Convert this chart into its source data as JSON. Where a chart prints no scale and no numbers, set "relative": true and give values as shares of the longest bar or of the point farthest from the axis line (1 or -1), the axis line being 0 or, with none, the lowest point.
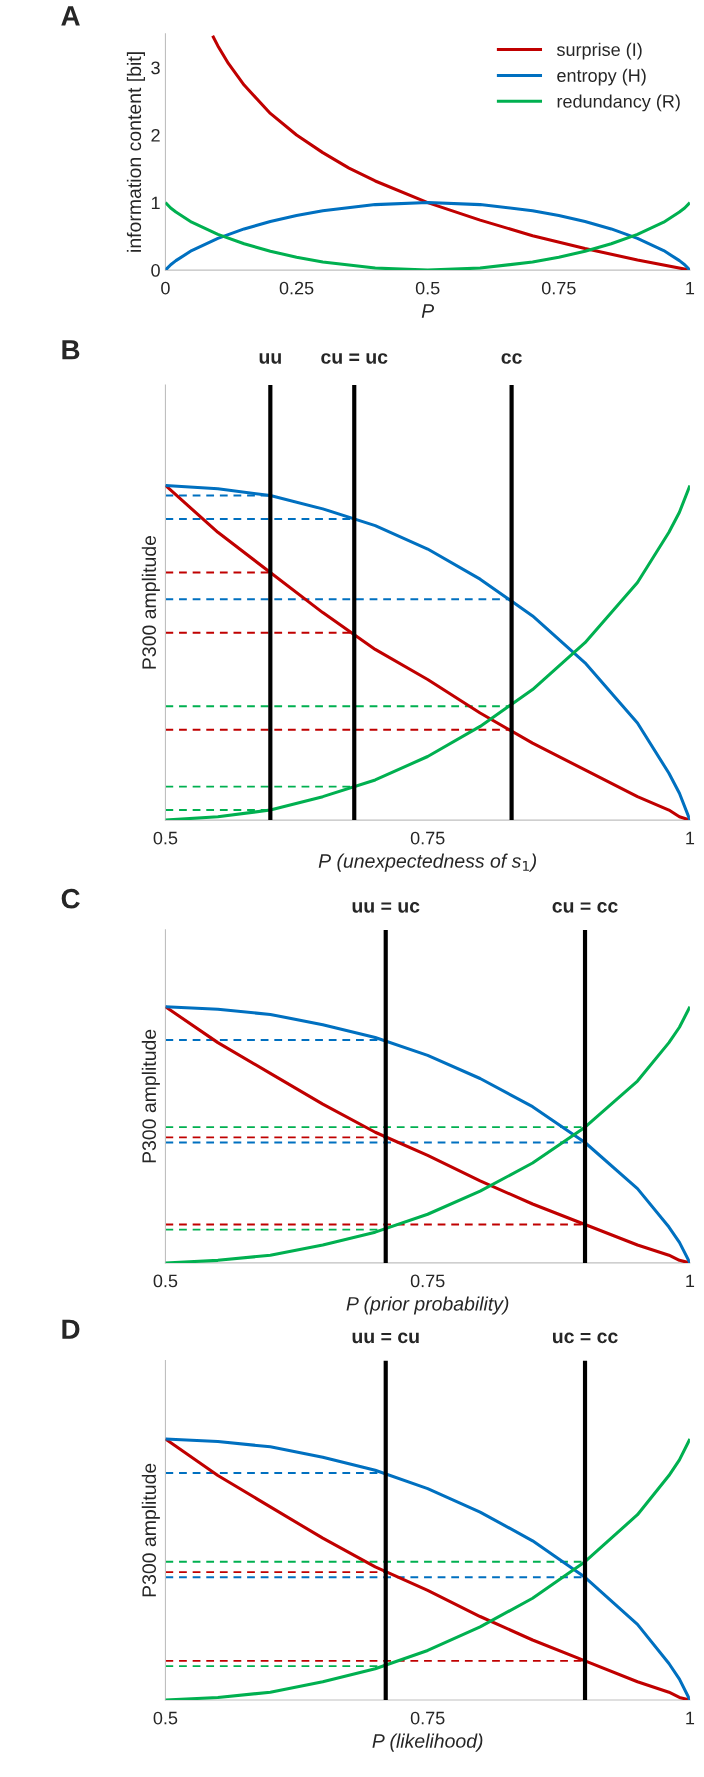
{
  "chart_data": [
    {
      "type": "line",
      "title": "A",
      "xlabel": "P",
      "ylabel": "information content [bit]",
      "xlim": [
        0,
        1
      ],
      "ylim": [
        0,
        3.5
      ],
      "xticks": [
        0,
        0.25,
        0.5,
        0.75,
        1
      ],
      "yticks": [
        0,
        1,
        2,
        3
      ],
      "legend": "top right",
      "series": [
        {
          "name": "surprise (I)",
          "color": "#c00000",
          "x": [
            0.09,
            0.1,
            0.12,
            0.15,
            0.2,
            0.25,
            0.3,
            0.35,
            0.4,
            0.5,
            0.6,
            0.7,
            0.8,
            0.9,
            1
          ],
          "values": [
            3.47,
            3.32,
            3.06,
            2.74,
            2.32,
            2,
            1.74,
            1.51,
            1.32,
            1,
            0.74,
            0.51,
            0.32,
            0.15,
            0
          ]
        },
        {
          "name": "entropy (H)",
          "color": "#0070c0",
          "x": [
            0,
            0.01,
            0.02,
            0.05,
            0.1,
            0.15,
            0.2,
            0.25,
            0.3,
            0.4,
            0.5,
            0.6,
            0.7,
            0.75,
            0.8,
            0.85,
            0.9,
            0.95,
            0.98,
            0.99,
            1
          ],
          "values": [
            0,
            0.08,
            0.14,
            0.29,
            0.47,
            0.61,
            0.72,
            0.81,
            0.88,
            0.97,
            1,
            0.97,
            0.88,
            0.81,
            0.72,
            0.61,
            0.47,
            0.29,
            0.14,
            0.08,
            0
          ]
        },
        {
          "name": "redundancy (R)",
          "color": "#00b050",
          "x": [
            0,
            0.01,
            0.02,
            0.05,
            0.1,
            0.15,
            0.2,
            0.25,
            0.3,
            0.4,
            0.5,
            0.6,
            0.7,
            0.75,
            0.8,
            0.85,
            0.9,
            0.95,
            0.98,
            0.99,
            1
          ],
          "values": [
            1,
            0.92,
            0.86,
            0.71,
            0.53,
            0.39,
            0.28,
            0.19,
            0.12,
            0.03,
            0,
            0.03,
            0.12,
            0.19,
            0.28,
            0.39,
            0.53,
            0.71,
            0.86,
            0.92,
            1
          ]
        }
      ]
    },
    {
      "type": "line",
      "title": "B",
      "xlabel": "P (unexpectedness of s$_{1}$)",
      "ylabel": "P300 amplitude",
      "relative": true,
      "tick_labels": "x",
      "xlim": [
        0.5,
        1
      ],
      "xticks": [
        0.5,
        0.75,
        1
      ],
      "ref_lines": [
        {
          "axis": "x",
          "value": 0.6,
          "label": "uu",
          "color": "#000000"
        },
        {
          "axis": "x",
          "value": 0.68,
          "label": "cu = uc",
          "color": "#000000"
        },
        {
          "axis": "x",
          "value": 0.83,
          "label": "cc",
          "color": "#000000"
        }
      ],
      "series": [
        {
          "color": "#c00000",
          "x": [
            0.5,
            0.55,
            0.6,
            0.65,
            0.7,
            0.75,
            0.8,
            0.85,
            0.9,
            0.95,
            0.98,
            0.99,
            1
          ],
          "values": [
            1,
            0.86,
            0.74,
            0.62,
            0.51,
            0.42,
            0.32,
            0.23,
            0.15,
            0.07,
            0.03,
            0.01,
            0
          ]
        },
        {
          "color": "#0070c0",
          "x": [
            0.5,
            0.55,
            0.6,
            0.65,
            0.7,
            0.75,
            0.8,
            0.85,
            0.9,
            0.95,
            0.98,
            0.99,
            1
          ],
          "values": [
            1,
            0.99,
            0.97,
            0.93,
            0.88,
            0.81,
            0.72,
            0.61,
            0.47,
            0.29,
            0.14,
            0.08,
            0
          ]
        },
        {
          "color": "#00b050",
          "x": [
            0.5,
            0.55,
            0.6,
            0.65,
            0.7,
            0.75,
            0.8,
            0.85,
            0.9,
            0.95,
            0.98,
            0.99,
            1
          ],
          "values": [
            0,
            0.01,
            0.03,
            0.07,
            0.12,
            0.19,
            0.28,
            0.39,
            0.53,
            0.71,
            0.86,
            0.92,
            1
          ]
        },
        {
          "color": "#0070c0",
          "line_style": "dashed",
          "x": [
            0.5,
            0.6
          ],
          "values": [
            0.97,
            0.97
          ]
        },
        {
          "color": "#c00000",
          "line_style": "dashed",
          "x": [
            0.5,
            0.6
          ],
          "values": [
            0.74,
            0.74
          ]
        },
        {
          "color": "#00b050",
          "line_style": "dashed",
          "x": [
            0.5,
            0.6
          ],
          "values": [
            0.03,
            0.03
          ]
        },
        {
          "color": "#0070c0",
          "line_style": "dashed",
          "x": [
            0.5,
            0.68
          ],
          "values": [
            0.9,
            0.9
          ]
        },
        {
          "color": "#c00000",
          "line_style": "dashed",
          "x": [
            0.5,
            0.68
          ],
          "values": [
            0.56,
            0.56
          ]
        },
        {
          "color": "#00b050",
          "line_style": "dashed",
          "x": [
            0.5,
            0.68
          ],
          "values": [
            0.1,
            0.1
          ]
        },
        {
          "color": "#0070c0",
          "line_style": "dashed",
          "x": [
            0.5,
            0.83
          ],
          "values": [
            0.66,
            0.66
          ]
        },
        {
          "color": "#c00000",
          "line_style": "dashed",
          "x": [
            0.5,
            0.83
          ],
          "values": [
            0.27,
            0.27
          ]
        },
        {
          "color": "#00b050",
          "line_style": "dashed",
          "x": [
            0.5,
            0.83
          ],
          "values": [
            0.34,
            0.34
          ]
        }
      ]
    },
    {
      "type": "line",
      "title": "C",
      "xlabel": "P (prior probability)",
      "ylabel": "P300 amplitude",
      "relative": true,
      "tick_labels": "x",
      "xlim": [
        0.5,
        1
      ],
      "xticks": [
        0.5,
        0.75,
        1
      ],
      "ref_lines": [
        {
          "axis": "x",
          "value": 0.71,
          "label": "uu = uc",
          "color": "#000000"
        },
        {
          "axis": "x",
          "value": 0.9,
          "label": "cu = cc",
          "color": "#000000"
        }
      ],
      "series": [
        {
          "color": "#c00000",
          "x": [
            0.5,
            0.55,
            0.6,
            0.65,
            0.7,
            0.75,
            0.8,
            0.85,
            0.9,
            0.95,
            0.98,
            0.99,
            1
          ],
          "values": [
            1,
            0.86,
            0.74,
            0.62,
            0.51,
            0.42,
            0.32,
            0.23,
            0.15,
            0.07,
            0.03,
            0.01,
            0
          ]
        },
        {
          "color": "#0070c0",
          "x": [
            0.5,
            0.55,
            0.6,
            0.65,
            0.7,
            0.75,
            0.8,
            0.85,
            0.9,
            0.95,
            0.98,
            0.99,
            1
          ],
          "values": [
            1,
            0.99,
            0.97,
            0.93,
            0.88,
            0.81,
            0.72,
            0.61,
            0.47,
            0.29,
            0.14,
            0.08,
            0
          ]
        },
        {
          "color": "#00b050",
          "x": [
            0.5,
            0.55,
            0.6,
            0.65,
            0.7,
            0.75,
            0.8,
            0.85,
            0.9,
            0.95,
            0.98,
            0.99,
            1
          ],
          "values": [
            0,
            0.01,
            0.03,
            0.07,
            0.12,
            0.19,
            0.28,
            0.39,
            0.53,
            0.71,
            0.86,
            0.92,
            1
          ]
        },
        {
          "color": "#0070c0",
          "line_style": "dashed",
          "x": [
            0.5,
            0.71
          ],
          "values": [
            0.87,
            0.87
          ]
        },
        {
          "color": "#c00000",
          "line_style": "dashed",
          "x": [
            0.5,
            0.71
          ],
          "values": [
            0.49,
            0.49
          ]
        },
        {
          "color": "#00b050",
          "line_style": "dashed",
          "x": [
            0.5,
            0.71
          ],
          "values": [
            0.13,
            0.13
          ]
        },
        {
          "color": "#0070c0",
          "line_style": "dashed",
          "x": [
            0.5,
            0.9
          ],
          "values": [
            0.47,
            0.47
          ]
        },
        {
          "color": "#00b050",
          "line_style": "dashed",
          "x": [
            0.5,
            0.9
          ],
          "values": [
            0.53,
            0.53
          ]
        },
        {
          "color": "#c00000",
          "line_style": "dashed",
          "x": [
            0.5,
            0.9
          ],
          "values": [
            0.15,
            0.15
          ]
        }
      ]
    },
    {
      "type": "line",
      "title": "D",
      "xlabel": "P (likelihood)",
      "ylabel": "P300 amplitude",
      "relative": true,
      "tick_labels": "x",
      "xlim": [
        0.5,
        1
      ],
      "xticks": [
        0.5,
        0.75,
        1
      ],
      "ref_lines": [
        {
          "axis": "x",
          "value": 0.71,
          "label": "uu = cu",
          "color": "#000000"
        },
        {
          "axis": "x",
          "value": 0.9,
          "label": "uc = cc",
          "color": "#000000"
        }
      ],
      "series": [
        {
          "color": "#c00000",
          "x": [
            0.5,
            0.55,
            0.6,
            0.65,
            0.7,
            0.75,
            0.8,
            0.85,
            0.9,
            0.95,
            0.98,
            0.99,
            1
          ],
          "values": [
            1,
            0.86,
            0.74,
            0.62,
            0.51,
            0.42,
            0.32,
            0.23,
            0.15,
            0.07,
            0.03,
            0.01,
            0
          ]
        },
        {
          "color": "#0070c0",
          "x": [
            0.5,
            0.55,
            0.6,
            0.65,
            0.7,
            0.75,
            0.8,
            0.85,
            0.9,
            0.95,
            0.98,
            0.99,
            1
          ],
          "values": [
            1,
            0.99,
            0.97,
            0.93,
            0.88,
            0.81,
            0.72,
            0.61,
            0.47,
            0.29,
            0.14,
            0.08,
            0
          ]
        },
        {
          "color": "#00b050",
          "x": [
            0.5,
            0.55,
            0.6,
            0.65,
            0.7,
            0.75,
            0.8,
            0.85,
            0.9,
            0.95,
            0.98,
            0.99,
            1
          ],
          "values": [
            0,
            0.01,
            0.03,
            0.07,
            0.12,
            0.19,
            0.28,
            0.39,
            0.53,
            0.71,
            0.86,
            0.92,
            1
          ]
        },
        {
          "color": "#0070c0",
          "line_style": "dashed",
          "x": [
            0.5,
            0.71
          ],
          "values": [
            0.87,
            0.87
          ]
        },
        {
          "color": "#c00000",
          "line_style": "dashed",
          "x": [
            0.5,
            0.71
          ],
          "values": [
            0.49,
            0.49
          ]
        },
        {
          "color": "#00b050",
          "line_style": "dashed",
          "x": [
            0.5,
            0.71
          ],
          "values": [
            0.13,
            0.13
          ]
        },
        {
          "color": "#0070c0",
          "line_style": "dashed",
          "x": [
            0.5,
            0.9
          ],
          "values": [
            0.47,
            0.47
          ]
        },
        {
          "color": "#00b050",
          "line_style": "dashed",
          "x": [
            0.5,
            0.9
          ],
          "values": [
            0.53,
            0.53
          ]
        },
        {
          "color": "#c00000",
          "line_style": "dashed",
          "x": [
            0.5,
            0.9
          ],
          "values": [
            0.15,
            0.15
          ]
        }
      ]
    }
  ]
}
